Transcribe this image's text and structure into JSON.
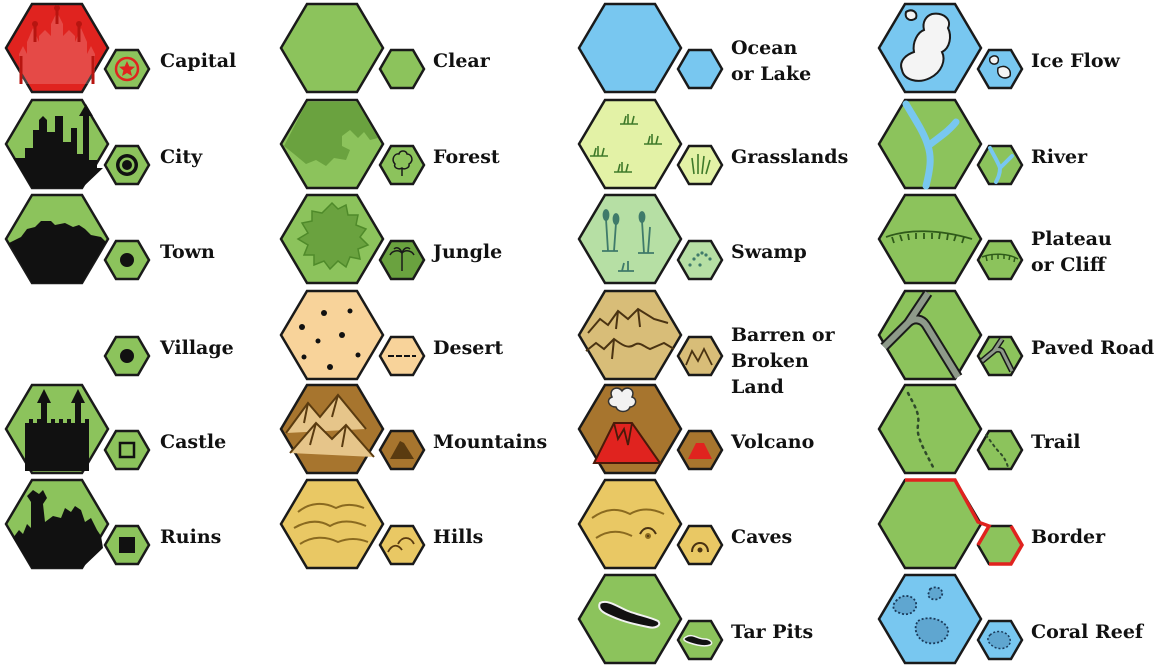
{
  "colors": {
    "outline": "#1a1a1a",
    "land_green": "#8cc35c",
    "forest_dark": "#6aa23f",
    "water_blue": "#78c7f0",
    "grass_light": "#e3f2a6",
    "swamp_light": "#b6dfa4",
    "desert_sand": "#f8d39a",
    "barren_tan": "#d8bd78",
    "mountain_brown": "#a7752e",
    "hills_gold": "#e9c864",
    "capital_red": "#e0231f",
    "border_red": "#e0231f",
    "ice_white": "#f4f4f4"
  },
  "legend": {
    "columns": [
      {
        "items": [
          {
            "key": "capital",
            "label": "Capital",
            "big_fill": "#e0231f",
            "small_fill": "#8cc35c",
            "big_icon": "red-palace-silhouette-icon",
            "small_icon": "red-star-circle-icon"
          },
          {
            "key": "city",
            "label": "City",
            "big_fill": "#8cc35c",
            "small_fill": "#8cc35c",
            "big_icon": "city-skyline-silhouette-icon",
            "small_icon": "double-circle-icon"
          },
          {
            "key": "town",
            "label": "Town",
            "big_fill": "#8cc35c",
            "small_fill": "#8cc35c",
            "big_icon": "town-silhouette-icon",
            "small_icon": "dot-icon"
          },
          {
            "key": "village",
            "label": "Village",
            "big_fill": "",
            "small_fill": "#8cc35c",
            "big_icon": "",
            "small_icon": "dot-icon"
          },
          {
            "key": "castle",
            "label": "Castle",
            "big_fill": "#8cc35c",
            "small_fill": "#8cc35c",
            "big_icon": "castle-silhouette-icon",
            "small_icon": "hollow-square-icon"
          },
          {
            "key": "ruins",
            "label": "Ruins",
            "big_fill": "#8cc35c",
            "small_fill": "#8cc35c",
            "big_icon": "ruins-silhouette-icon",
            "small_icon": "filled-square-icon"
          }
        ]
      },
      {
        "items": [
          {
            "key": "clear",
            "label": "Clear",
            "big_fill": "#8cc35c",
            "small_fill": "#8cc35c",
            "big_icon": "",
            "small_icon": ""
          },
          {
            "key": "forest",
            "label": "Forest",
            "big_fill": "#8cc35c",
            "small_fill": "#8cc35c",
            "big_icon": "forest-canopy-icon",
            "small_icon": "tree-icon"
          },
          {
            "key": "jungle",
            "label": "Jungle",
            "big_fill": "#8cc35c",
            "small_fill": "#6aa23f",
            "big_icon": "jungle-canopy-icon",
            "small_icon": "palm-tree-icon"
          },
          {
            "key": "desert",
            "label": "Desert",
            "big_fill": "#f8d39a",
            "small_fill": "#f8d39a",
            "big_icon": "desert-pebbles-icon",
            "small_icon": "dash-icon"
          },
          {
            "key": "mountains",
            "label": "Mountains",
            "big_fill": "#a7752e",
            "small_fill": "#a7752e",
            "big_icon": "mountain-range-icon",
            "small_icon": "mountain-peak-icon"
          },
          {
            "key": "hills",
            "label": "Hills",
            "big_fill": "#e9c864",
            "small_fill": "#e9c864",
            "big_icon": "hill-lines-icon",
            "small_icon": "hill-arcs-icon"
          }
        ]
      },
      {
        "items": [
          {
            "key": "ocean",
            "label": "Ocean\nor Lake",
            "big_fill": "#78c7f0",
            "small_fill": "#78c7f0",
            "big_icon": "",
            "small_icon": ""
          },
          {
            "key": "grasslands",
            "label": "Grasslands",
            "big_fill": "#e3f2a6",
            "small_fill": "#e3f2a6",
            "big_icon": "grass-tufts-icon",
            "small_icon": "grass-tuft-icon"
          },
          {
            "key": "swamp",
            "label": "Swamp",
            "big_fill": "#b6dfa4",
            "small_fill": "#b6dfa4",
            "big_icon": "swamp-reeds-icon",
            "small_icon": "swamp-dots-icon"
          },
          {
            "key": "barren",
            "label": "Barren or\nBroken Land",
            "big_fill": "#d8bd78",
            "small_fill": "#d8bd78",
            "big_icon": "broken-land-icon",
            "small_icon": "zigzag-icon"
          },
          {
            "key": "volcano",
            "label": "Volcano",
            "big_fill": "#a7752e",
            "small_fill": "#a7752e",
            "big_icon": "erupting-volcano-icon",
            "small_icon": "red-volcano-icon"
          },
          {
            "key": "caves",
            "label": "Caves",
            "big_fill": "#e9c864",
            "small_fill": "#e9c864",
            "big_icon": "cave-hills-icon",
            "small_icon": "cave-arch-icon"
          },
          {
            "key": "tarpits",
            "label": "Tar Pits",
            "big_fill": "#8cc35c",
            "small_fill": "#8cc35c",
            "big_icon": "tar-pit-icon",
            "small_icon": "tar-blob-icon"
          }
        ]
      },
      {
        "items": [
          {
            "key": "iceflow",
            "label": "Ice Flow",
            "big_fill": "#78c7f0",
            "small_fill": "#78c7f0",
            "big_icon": "ice-floes-icon",
            "small_icon": "ice-floe-icon"
          },
          {
            "key": "river",
            "label": "River",
            "big_fill": "#8cc35c",
            "small_fill": "#8cc35c",
            "big_icon": "river-fork-icon",
            "small_icon": "river-fork-icon"
          },
          {
            "key": "plateau",
            "label": "Plateau\nor Cliff",
            "big_fill": "#8cc35c",
            "small_fill": "#8cc35c",
            "big_icon": "cliff-edge-icon",
            "small_icon": "cliff-edge-icon"
          },
          {
            "key": "pavedroad",
            "label": "Paved Road",
            "big_fill": "#8cc35c",
            "small_fill": "#8cc35c",
            "big_icon": "paved-road-icon",
            "small_icon": "paved-road-icon"
          },
          {
            "key": "trail",
            "label": "Trail",
            "big_fill": "#8cc35c",
            "small_fill": "#8cc35c",
            "big_icon": "dotted-trail-icon",
            "small_icon": "dotted-trail-icon"
          },
          {
            "key": "border",
            "label": "Border",
            "big_fill": "#8cc35c",
            "small_fill": "#8cc35c",
            "big_icon": "red-border-line-icon",
            "small_icon": "red-border-line-icon"
          },
          {
            "key": "coralreef",
            "label": "Coral Reef",
            "big_fill": "#78c7f0",
            "small_fill": "#78c7f0",
            "big_icon": "coral-patches-icon",
            "small_icon": "coral-patch-icon"
          }
        ]
      }
    ]
  }
}
